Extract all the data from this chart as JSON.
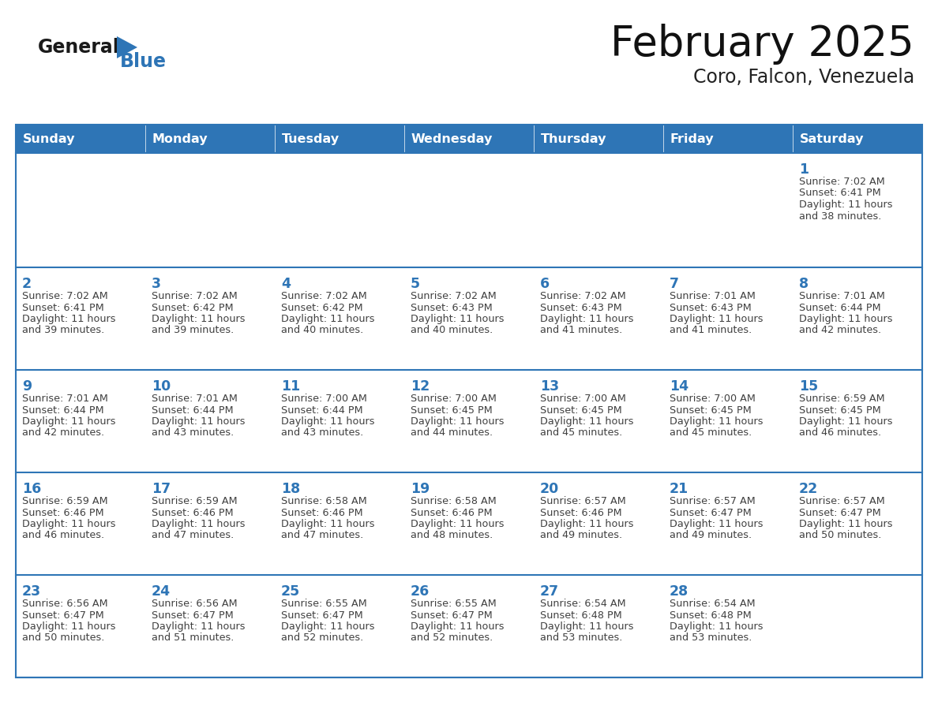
{
  "title": "February 2025",
  "subtitle": "Coro, Falcon, Venezuela",
  "header_color": "#2e75b6",
  "header_text_color": "#ffffff",
  "cell_bg_color": "#ffffff",
  "border_color": "#2e75b6",
  "text_color": "#404040",
  "day_number_color": "#2e75b6",
  "logo_color": "#2e75b6",
  "logo_black": "#1a1a1a",
  "days_of_week": [
    "Sunday",
    "Monday",
    "Tuesday",
    "Wednesday",
    "Thursday",
    "Friday",
    "Saturday"
  ],
  "weeks": [
    [
      {
        "day": null,
        "sunrise": null,
        "sunset": null,
        "daylight": null
      },
      {
        "day": null,
        "sunrise": null,
        "sunset": null,
        "daylight": null
      },
      {
        "day": null,
        "sunrise": null,
        "sunset": null,
        "daylight": null
      },
      {
        "day": null,
        "sunrise": null,
        "sunset": null,
        "daylight": null
      },
      {
        "day": null,
        "sunrise": null,
        "sunset": null,
        "daylight": null
      },
      {
        "day": null,
        "sunrise": null,
        "sunset": null,
        "daylight": null
      },
      {
        "day": 1,
        "sunrise": "7:02 AM",
        "sunset": "6:41 PM",
        "daylight": "11 hours and 38 minutes"
      }
    ],
    [
      {
        "day": 2,
        "sunrise": "7:02 AM",
        "sunset": "6:41 PM",
        "daylight": "11 hours and 39 minutes"
      },
      {
        "day": 3,
        "sunrise": "7:02 AM",
        "sunset": "6:42 PM",
        "daylight": "11 hours and 39 minutes"
      },
      {
        "day": 4,
        "sunrise": "7:02 AM",
        "sunset": "6:42 PM",
        "daylight": "11 hours and 40 minutes"
      },
      {
        "day": 5,
        "sunrise": "7:02 AM",
        "sunset": "6:43 PM",
        "daylight": "11 hours and 40 minutes"
      },
      {
        "day": 6,
        "sunrise": "7:02 AM",
        "sunset": "6:43 PM",
        "daylight": "11 hours and 41 minutes"
      },
      {
        "day": 7,
        "sunrise": "7:01 AM",
        "sunset": "6:43 PM",
        "daylight": "11 hours and 41 minutes"
      },
      {
        "day": 8,
        "sunrise": "7:01 AM",
        "sunset": "6:44 PM",
        "daylight": "11 hours and 42 minutes"
      }
    ],
    [
      {
        "day": 9,
        "sunrise": "7:01 AM",
        "sunset": "6:44 PM",
        "daylight": "11 hours and 42 minutes"
      },
      {
        "day": 10,
        "sunrise": "7:01 AM",
        "sunset": "6:44 PM",
        "daylight": "11 hours and 43 minutes"
      },
      {
        "day": 11,
        "sunrise": "7:00 AM",
        "sunset": "6:44 PM",
        "daylight": "11 hours and 43 minutes"
      },
      {
        "day": 12,
        "sunrise": "7:00 AM",
        "sunset": "6:45 PM",
        "daylight": "11 hours and 44 minutes"
      },
      {
        "day": 13,
        "sunrise": "7:00 AM",
        "sunset": "6:45 PM",
        "daylight": "11 hours and 45 minutes"
      },
      {
        "day": 14,
        "sunrise": "7:00 AM",
        "sunset": "6:45 PM",
        "daylight": "11 hours and 45 minutes"
      },
      {
        "day": 15,
        "sunrise": "6:59 AM",
        "sunset": "6:45 PM",
        "daylight": "11 hours and 46 minutes"
      }
    ],
    [
      {
        "day": 16,
        "sunrise": "6:59 AM",
        "sunset": "6:46 PM",
        "daylight": "11 hours and 46 minutes"
      },
      {
        "day": 17,
        "sunrise": "6:59 AM",
        "sunset": "6:46 PM",
        "daylight": "11 hours and 47 minutes"
      },
      {
        "day": 18,
        "sunrise": "6:58 AM",
        "sunset": "6:46 PM",
        "daylight": "11 hours and 47 minutes"
      },
      {
        "day": 19,
        "sunrise": "6:58 AM",
        "sunset": "6:46 PM",
        "daylight": "11 hours and 48 minutes"
      },
      {
        "day": 20,
        "sunrise": "6:57 AM",
        "sunset": "6:46 PM",
        "daylight": "11 hours and 49 minutes"
      },
      {
        "day": 21,
        "sunrise": "6:57 AM",
        "sunset": "6:47 PM",
        "daylight": "11 hours and 49 minutes"
      },
      {
        "day": 22,
        "sunrise": "6:57 AM",
        "sunset": "6:47 PM",
        "daylight": "11 hours and 50 minutes"
      }
    ],
    [
      {
        "day": 23,
        "sunrise": "6:56 AM",
        "sunset": "6:47 PM",
        "daylight": "11 hours and 50 minutes"
      },
      {
        "day": 24,
        "sunrise": "6:56 AM",
        "sunset": "6:47 PM",
        "daylight": "11 hours and 51 minutes"
      },
      {
        "day": 25,
        "sunrise": "6:55 AM",
        "sunset": "6:47 PM",
        "daylight": "11 hours and 52 minutes"
      },
      {
        "day": 26,
        "sunrise": "6:55 AM",
        "sunset": "6:47 PM",
        "daylight": "11 hours and 52 minutes"
      },
      {
        "day": 27,
        "sunrise": "6:54 AM",
        "sunset": "6:48 PM",
        "daylight": "11 hours and 53 minutes"
      },
      {
        "day": 28,
        "sunrise": "6:54 AM",
        "sunset": "6:48 PM",
        "daylight": "11 hours and 53 minutes"
      },
      {
        "day": null,
        "sunrise": null,
        "sunset": null,
        "daylight": null
      }
    ]
  ]
}
